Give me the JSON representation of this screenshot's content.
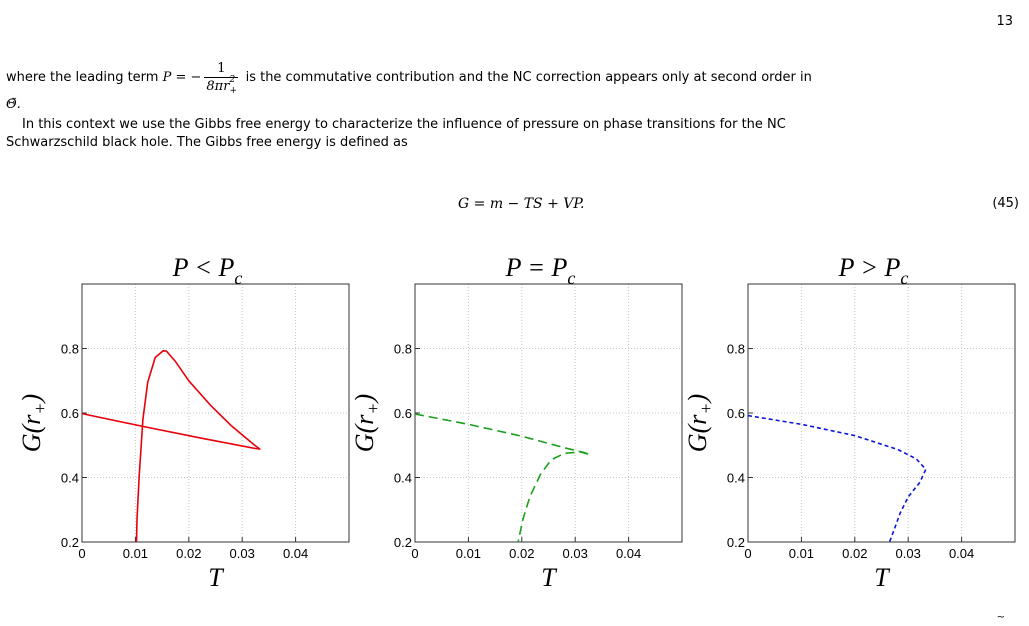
{
  "page_number": "13",
  "text": {
    "line1_pre": "where the leading term",
    "line1_math": "P = −",
    "line1_frac_num": "1",
    "line1_frac_den": "8πr",
    "line1_frac_den_sup": "2",
    "line1_frac_den_sub": "+",
    "line1_post": "is the commutative contribution and the NC correction appears only at second order in",
    "line2": "Θ̃.",
    "para2_line1": "In this context we use the Gibbs free energy to characterize the influence of pressure on phase transitions for the NC",
    "para2_line2": "Schwarzschild black hole. The Gibbs free energy is defined as"
  },
  "equation": {
    "expr": "G = m − TS + VP.",
    "number": "(45)"
  },
  "trailing_mark": "~",
  "colors": {
    "red": "#e8000b",
    "green": "#1aa01a",
    "blue": "#0a14d8",
    "grid": "#c8c8c8"
  },
  "chart_data": [
    {
      "type": "line",
      "title": "P < P_c",
      "title_main": "P < P",
      "title_sub": "c",
      "xlabel": "T",
      "ylabel": "G(r+)",
      "ylabel_main": "G(r",
      "ylabel_sub": "+",
      "ylabel_close": ")",
      "xlim": [
        0,
        0.05
      ],
      "ylim": [
        0.2,
        1.0
      ],
      "x_ticks": [
        0,
        0.01,
        0.02,
        0.03,
        0.04
      ],
      "x_tick_labels": [
        "0",
        "0.01",
        "0.02",
        "0.03",
        "0.04"
      ],
      "y_ticks": [
        0.2,
        0.4,
        0.6,
        0.8
      ],
      "y_tick_labels": [
        "0.2",
        "0.4",
        "0.6",
        "0.8"
      ],
      "grid": true,
      "series": [
        {
          "color": "#e8000b",
          "style": "solid",
          "points": [
            [
              0.0,
              0.598
            ],
            [
              0.0115,
              0.558
            ],
            [
              0.022,
              0.523
            ],
            [
              0.0325,
              0.49
            ],
            [
              0.0333,
              0.488
            ],
            [
              0.0322,
              0.502
            ],
            [
              0.028,
              0.56
            ],
            [
              0.024,
              0.625
            ],
            [
              0.02,
              0.7
            ],
            [
              0.0175,
              0.76
            ],
            [
              0.0158,
              0.792
            ],
            [
              0.0152,
              0.793
            ],
            [
              0.0137,
              0.772
            ],
            [
              0.0123,
              0.695
            ],
            [
              0.0114,
              0.58
            ],
            [
              0.0107,
              0.4
            ],
            [
              0.0103,
              0.27
            ],
            [
              0.0102,
              0.2
            ]
          ]
        }
      ]
    },
    {
      "type": "line",
      "title": "P = P_c",
      "title_main": "P = P",
      "title_sub": "c",
      "xlabel": "T",
      "ylabel": "G(r+)",
      "ylabel_main": "G(r",
      "ylabel_sub": "+",
      "ylabel_close": ")",
      "xlim": [
        0,
        0.05
      ],
      "ylim": [
        0.2,
        1.0
      ],
      "x_ticks": [
        0,
        0.01,
        0.02,
        0.03,
        0.04
      ],
      "x_tick_labels": [
        "0",
        "0.01",
        "0.02",
        "0.03",
        "0.04"
      ],
      "y_ticks": [
        0.2,
        0.4,
        0.6,
        0.8
      ],
      "y_tick_labels": [
        "0.2",
        "0.4",
        "0.6",
        "0.8"
      ],
      "grid": true,
      "series": [
        {
          "color": "#1aa01a",
          "style": "dashed",
          "points": [
            [
              0.0,
              0.597
            ],
            [
              0.01,
              0.565
            ],
            [
              0.02,
              0.528
            ],
            [
              0.028,
              0.492
            ],
            [
              0.0315,
              0.478
            ],
            [
              0.0328,
              0.471
            ],
            [
              0.031,
              0.479
            ],
            [
              0.028,
              0.475
            ],
            [
              0.0255,
              0.455
            ],
            [
              0.0235,
              0.41
            ],
            [
              0.0215,
              0.34
            ],
            [
              0.0202,
              0.27
            ],
            [
              0.0193,
              0.2
            ]
          ]
        }
      ]
    },
    {
      "type": "line",
      "title": "P > P_c",
      "title_main": "P > P",
      "title_sub": "c",
      "xlabel": "T",
      "ylabel": "G(r+)",
      "ylabel_main": "G(r",
      "ylabel_sub": "+",
      "ylabel_close": ")",
      "xlim": [
        0,
        0.05
      ],
      "ylim": [
        0.2,
        1.0
      ],
      "x_ticks": [
        0,
        0.01,
        0.02,
        0.03,
        0.04
      ],
      "x_tick_labels": [
        "0",
        "0.01",
        "0.02",
        "0.03",
        "0.04"
      ],
      "y_ticks": [
        0.2,
        0.4,
        0.6,
        0.8
      ],
      "y_tick_labels": [
        "0.2",
        "0.4",
        "0.6",
        "0.8"
      ],
      "grid": true,
      "series": [
        {
          "color": "#0a14d8",
          "style": "dashed",
          "points": [
            [
              0.0,
              0.592
            ],
            [
              0.01,
              0.565
            ],
            [
              0.02,
              0.53
            ],
            [
              0.028,
              0.487
            ],
            [
              0.0315,
              0.458
            ],
            [
              0.0333,
              0.425
            ],
            [
              0.0322,
              0.385
            ],
            [
              0.03,
              0.34
            ],
            [
              0.0285,
              0.29
            ],
            [
              0.0272,
              0.23
            ],
            [
              0.0265,
              0.2
            ]
          ]
        }
      ]
    }
  ]
}
